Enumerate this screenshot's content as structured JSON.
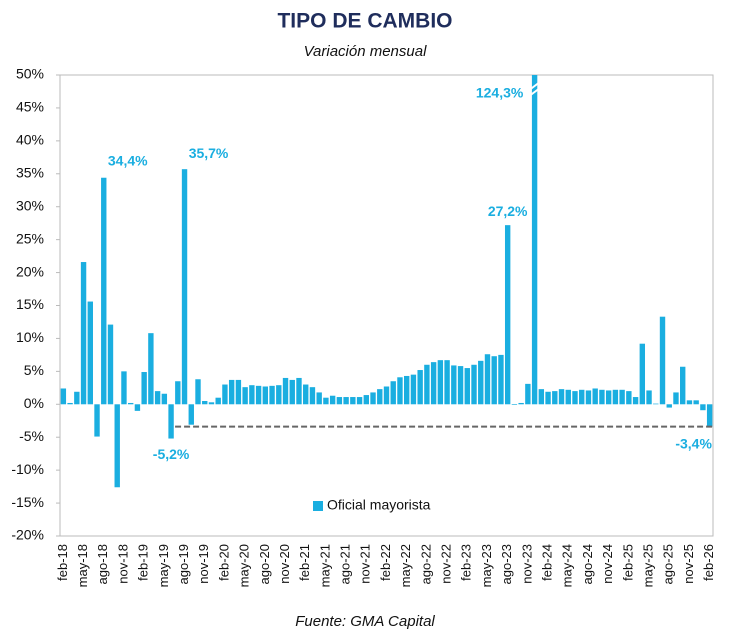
{
  "chart_data": {
    "type": "bar",
    "title": "TIPO DE CAMBIO",
    "subtitle": "Variación mensual",
    "source": "Fuente: GMA Capital",
    "categories": [
      "feb-18",
      null,
      null,
      "may-18",
      null,
      null,
      "ago-18",
      null,
      null,
      "nov-18",
      null,
      null,
      "feb-19",
      null,
      null,
      "may-19",
      null,
      null,
      "ago-19",
      null,
      null,
      "nov-19",
      null,
      null,
      "feb-20",
      null,
      null,
      "may-20",
      null,
      null,
      "ago-20",
      null,
      null,
      "nov-20",
      null,
      null,
      "feb-21",
      null,
      null,
      "may-21",
      null,
      null,
      "ago-21",
      null,
      null,
      "nov-21",
      null,
      null,
      "feb-22",
      null,
      null,
      "may-22",
      null,
      null,
      "ago-22",
      null,
      null,
      "nov-22",
      null,
      null,
      "feb-23",
      null,
      null,
      "may-23",
      null,
      null,
      "ago-23",
      null,
      null,
      "nov-23",
      null,
      null,
      "feb-24",
      null,
      null,
      "may-24",
      null,
      null,
      "ago-24",
      null,
      null,
      "nov-24",
      null,
      null,
      "feb-25",
      null,
      null,
      "may-25",
      null,
      null,
      "ago-25",
      null,
      null,
      "nov-25",
      null,
      null,
      "feb-26"
    ],
    "series": [
      {
        "name": "Oficial mayorista",
        "color": "#1aaee0",
        "values": [
          2.4,
          0.2,
          1.9,
          21.6,
          15.6,
          -4.9,
          34.4,
          12.1,
          -12.6,
          5.0,
          0.2,
          -1.0,
          4.9,
          10.8,
          2.0,
          1.6,
          -5.2,
          3.5,
          35.7,
          -3.1,
          3.8,
          0.5,
          0.3,
          1.0,
          3.0,
          3.7,
          3.7,
          2.6,
          2.9,
          2.8,
          2.7,
          2.8,
          2.9,
          4.0,
          3.7,
          4.0,
          3.0,
          2.6,
          1.8,
          1.0,
          1.3,
          1.1,
          1.1,
          1.1,
          1.1,
          1.4,
          1.8,
          2.3,
          2.7,
          3.5,
          4.1,
          4.3,
          4.5,
          5.2,
          6.0,
          6.4,
          6.7,
          6.7,
          5.9,
          5.8,
          5.5,
          6.0,
          6.6,
          7.6,
          7.3,
          7.5,
          27.2,
          -0.1,
          0.2,
          3.1,
          124.3,
          2.3,
          1.9,
          2.0,
          2.3,
          2.2,
          2.0,
          2.2,
          2.1,
          2.4,
          2.2,
          2.1,
          2.2,
          2.2,
          2.0,
          1.1,
          9.2,
          2.1,
          0.1,
          13.3,
          -0.5,
          1.8,
          5.7,
          0.6,
          0.6,
          -0.9,
          -3.4
        ],
        "value_labels": [
          null,
          null,
          null,
          null,
          null,
          null,
          "34,4%",
          null,
          null,
          null,
          null,
          null,
          null,
          null,
          null,
          null,
          "-5,2%",
          null,
          "35,7%",
          null,
          null,
          null,
          null,
          null,
          null,
          null,
          null,
          null,
          null,
          null,
          null,
          null,
          null,
          null,
          null,
          null,
          null,
          null,
          null,
          null,
          null,
          null,
          null,
          null,
          null,
          null,
          null,
          null,
          null,
          null,
          null,
          null,
          null,
          null,
          null,
          null,
          null,
          null,
          null,
          null,
          null,
          null,
          null,
          null,
          null,
          null,
          "27,2%",
          null,
          null,
          null,
          "124,3%",
          null,
          null,
          null,
          null,
          null,
          null,
          null,
          null,
          null,
          null,
          null,
          null,
          null,
          null,
          null,
          null,
          null,
          null,
          null,
          null,
          null,
          null,
          null,
          null,
          null,
          "-3,4%"
        ]
      }
    ],
    "reference_line": -3.4,
    "ylim": [
      -20,
      50
    ],
    "yticks": [
      {
        "value": -20,
        "label": "-20%"
      },
      {
        "value": -15,
        "label": "-15%"
      },
      {
        "value": -10,
        "label": "-10%"
      },
      {
        "value": -5,
        "label": "-5%"
      },
      {
        "value": 0,
        "label": "0%"
      },
      {
        "value": 5,
        "label": "5%"
      },
      {
        "value": 10,
        "label": "10%"
      },
      {
        "value": 15,
        "label": "15%"
      },
      {
        "value": 20,
        "label": "20%"
      },
      {
        "value": 25,
        "label": "25%"
      },
      {
        "value": 30,
        "label": "30%"
      },
      {
        "value": 35,
        "label": "35%"
      },
      {
        "value": 40,
        "label": "40%"
      },
      {
        "value": 45,
        "label": "45%"
      },
      {
        "value": 50,
        "label": "50%"
      }
    ],
    "grid": false,
    "legend": "bottom"
  }
}
